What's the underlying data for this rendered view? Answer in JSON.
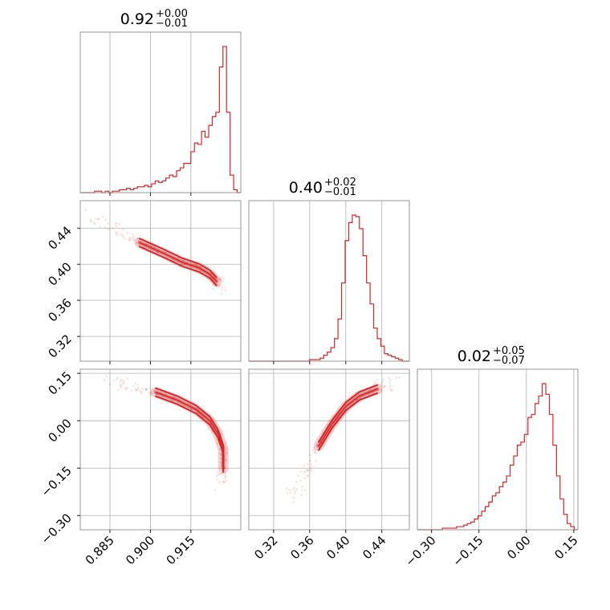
{
  "chart_data": {
    "type": "corner",
    "color": "#d62728",
    "grid": true,
    "parameters": [
      {
        "title_value": "0.92",
        "title_plus": "+0.00",
        "title_minus": "−0.01",
        "range": [
          0.874,
          0.9335
        ],
        "ticks": [
          {
            "v": 0.885,
            "label": "0.885"
          },
          {
            "v": 0.9,
            "label": "0.900"
          },
          {
            "v": 0.915,
            "label": "0.915"
          }
        ]
      },
      {
        "title_value": "0.40",
        "title_plus": "+0.02",
        "title_minus": "−0.01",
        "range": [
          0.2925,
          0.4705
        ],
        "ticks": [
          {
            "v": 0.32,
            "label": "0.32"
          },
          {
            "v": 0.36,
            "label": "0.36"
          },
          {
            "v": 0.4,
            "label": "0.40"
          },
          {
            "v": 0.44,
            "label": "0.44"
          }
        ]
      },
      {
        "title_value": "0.02",
        "title_plus": "+0.05",
        "title_minus": "−0.07",
        "range": [
          -0.345,
          0.163
        ],
        "ticks": [
          {
            "v": -0.3,
            "label": "−0.30"
          },
          {
            "v": -0.15,
            "label": "−0.15"
          },
          {
            "v": 0.0,
            "label": "0.00"
          },
          {
            "v": 0.15,
            "label": "0.15"
          }
        ]
      }
    ],
    "histograms": [
      {
        "param": 0,
        "bins": [
          0.874,
          0.9335
        ],
        "counts": [
          0,
          0,
          0,
          0,
          1,
          1,
          0,
          1,
          0,
          1,
          1,
          2,
          2,
          3,
          2,
          3,
          4,
          4,
          5,
          4,
          6,
          8,
          7,
          8,
          10,
          12,
          11,
          15,
          17,
          20,
          20,
          28,
          34,
          33,
          42,
          38,
          46,
          52,
          55,
          86,
          100,
          55,
          12,
          2,
          0
        ]
      },
      {
        "param": 1,
        "bins": [
          0.2925,
          0.4705
        ],
        "counts": [
          0,
          0,
          0,
          0,
          0,
          0,
          0,
          0,
          0,
          0,
          0,
          0,
          0,
          0,
          0,
          0,
          0,
          1,
          1,
          1,
          2,
          4,
          6,
          9,
          15,
          28,
          52,
          80,
          92,
          97,
          96,
          88,
          70,
          52,
          38,
          22,
          15,
          10,
          5,
          4,
          3,
          2,
          1,
          0,
          0
        ]
      },
      {
        "param": 2,
        "bins": [
          -0.345,
          0.163
        ],
        "counts": [
          0,
          0,
          0,
          0,
          0,
          0,
          0,
          1,
          1,
          1,
          1,
          2,
          2,
          3,
          4,
          5,
          7,
          9,
          12,
          15,
          18,
          22,
          24,
          28,
          31,
          35,
          42,
          48,
          55,
          57,
          62,
          73,
          75,
          82,
          87,
          95,
          88,
          75,
          55,
          35,
          20,
          10,
          4,
          2,
          0
        ]
      }
    ],
    "pairs": [
      {
        "x": 0,
        "y": 1,
        "ridge": [
          [
            0.877,
            0.457
          ],
          [
            0.888,
            0.436
          ],
          [
            0.896,
            0.424
          ],
          [
            0.905,
            0.412
          ],
          [
            0.912,
            0.402
          ],
          [
            0.918,
            0.396
          ],
          [
            0.922,
            0.389
          ],
          [
            0.9245,
            0.381
          ],
          [
            0.926,
            0.373
          ]
        ]
      },
      {
        "x": 0,
        "y": 2,
        "ridge": [
          [
            0.884,
            0.13
          ],
          [
            0.893,
            0.11
          ],
          [
            0.902,
            0.09
          ],
          [
            0.91,
            0.065
          ],
          [
            0.917,
            0.035
          ],
          [
            0.922,
            0.0
          ],
          [
            0.925,
            -0.04
          ],
          [
            0.927,
            -0.09
          ],
          [
            0.927,
            -0.15
          ],
          [
            0.925,
            -0.2
          ]
        ]
      },
      {
        "x": 1,
        "y": 2,
        "ridge": [
          [
            0.34,
            -0.24
          ],
          [
            0.355,
            -0.17
          ],
          [
            0.37,
            -0.08
          ],
          [
            0.385,
            -0.01
          ],
          [
            0.4,
            0.045
          ],
          [
            0.415,
            0.078
          ],
          [
            0.435,
            0.1
          ],
          [
            0.455,
            0.12
          ]
        ]
      }
    ]
  }
}
